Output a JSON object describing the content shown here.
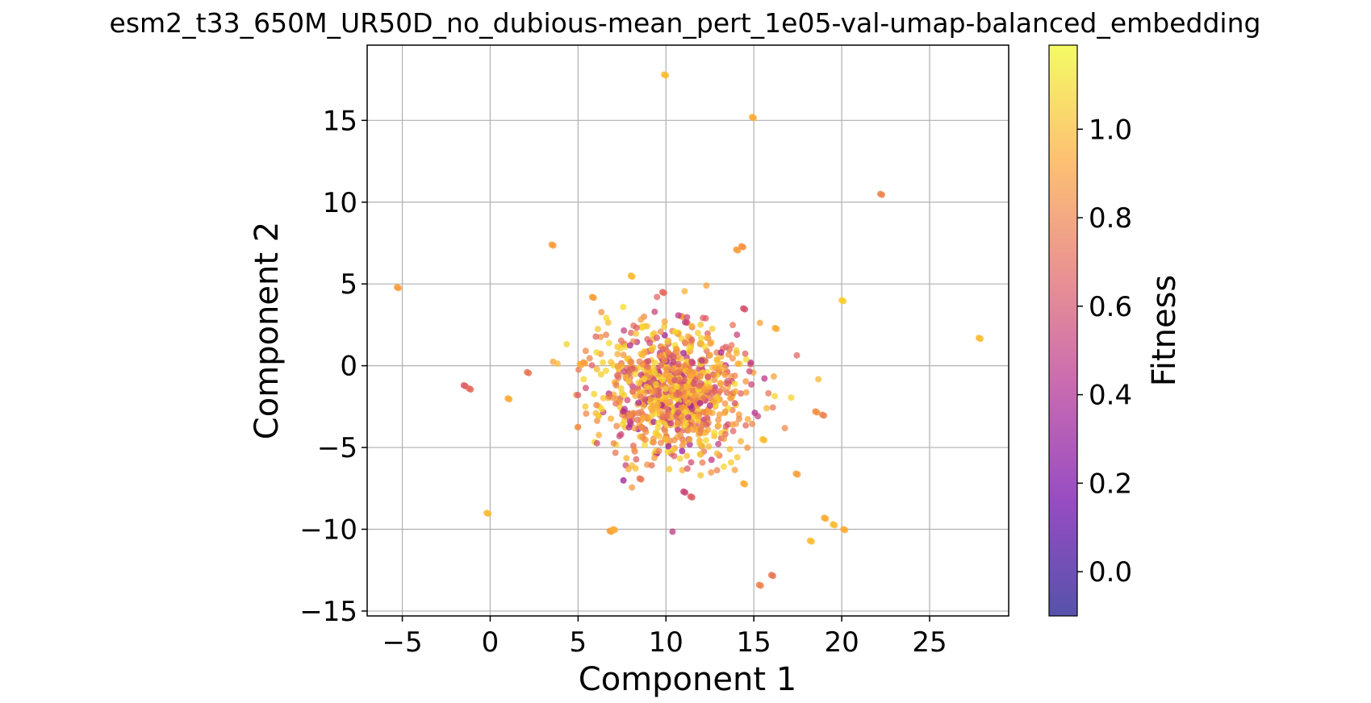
{
  "chart_data": {
    "type": "scatter",
    "title": "esm2_t33_650M_UR50D_no_dubious-mean_pert_1e05-val-umap-balanced_embedding",
    "xlabel": "Component 1",
    "ylabel": "Component 2",
    "xlim": [
      -7,
      29.5
    ],
    "ylim": [
      -15.3,
      19.6
    ],
    "xticks": [
      -5,
      0,
      5,
      10,
      15,
      20,
      25
    ],
    "yticks": [
      -15,
      -10,
      -5,
      0,
      5,
      10,
      15
    ],
    "grid": true,
    "colormap": "plasma",
    "colorbar": {
      "label": "Fitness",
      "range": [
        -0.1,
        1.19
      ],
      "ticks": [
        0.0,
        0.2,
        0.4,
        0.6,
        0.8,
        1.0
      ],
      "colors": [
        "#0d0887",
        "#6a00a8",
        "#b12a90",
        "#e16462",
        "#fca636",
        "#f0f921"
      ]
    },
    "cluster": {
      "center": [
        10.5,
        -1.6
      ],
      "spread": [
        2.1,
        2.0
      ],
      "count": 950,
      "fitness_range": [
        0.3,
        1.1
      ]
    },
    "outliers": [
      {
        "x": -5.3,
        "y": 4.8,
        "c": 0.9
      },
      {
        "x": -1.5,
        "y": -1.2,
        "c": 0.65
      },
      {
        "x": -1.2,
        "y": -1.4,
        "c": 0.7
      },
      {
        "x": 1.0,
        "y": -2.0,
        "c": 0.95
      },
      {
        "x": 2.1,
        "y": -0.4,
        "c": 0.75
      },
      {
        "x": -0.2,
        "y": -9.0,
        "c": 1.0
      },
      {
        "x": 3.5,
        "y": 7.4,
        "c": 0.9
      },
      {
        "x": 9.9,
        "y": 17.8,
        "c": 1.0
      },
      {
        "x": 14.9,
        "y": 15.2,
        "c": 0.95
      },
      {
        "x": 22.2,
        "y": 10.5,
        "c": 0.8
      },
      {
        "x": 14.0,
        "y": 7.1,
        "c": 0.9
      },
      {
        "x": 14.3,
        "y": 7.3,
        "c": 0.85
      },
      {
        "x": 20.0,
        "y": 4.0,
        "c": 1.05
      },
      {
        "x": 27.8,
        "y": 1.7,
        "c": 1.0
      },
      {
        "x": 16.2,
        "y": 2.3,
        "c": 0.95
      },
      {
        "x": 18.5,
        "y": -2.8,
        "c": 0.85
      },
      {
        "x": 18.9,
        "y": -3.0,
        "c": 0.8
      },
      {
        "x": 17.4,
        "y": -6.6,
        "c": 0.9
      },
      {
        "x": 18.2,
        "y": -10.7,
        "c": 1.0
      },
      {
        "x": 19.0,
        "y": -9.3,
        "c": 0.95
      },
      {
        "x": 19.5,
        "y": -9.7,
        "c": 1.0
      },
      {
        "x": 20.1,
        "y": -10.0,
        "c": 0.95
      },
      {
        "x": 16.0,
        "y": -12.8,
        "c": 0.75
      },
      {
        "x": 15.3,
        "y": -13.4,
        "c": 0.8
      },
      {
        "x": 6.8,
        "y": -10.1,
        "c": 0.9
      },
      {
        "x": 7.0,
        "y": -10.0,
        "c": 0.95
      },
      {
        "x": 11.0,
        "y": -7.7,
        "c": 0.55
      },
      {
        "x": 11.4,
        "y": -8.0,
        "c": 0.65
      },
      {
        "x": 8.5,
        "y": -6.9,
        "c": 0.75
      },
      {
        "x": 14.4,
        "y": -7.2,
        "c": 0.95
      },
      {
        "x": 8.0,
        "y": 5.5,
        "c": 1.0
      },
      {
        "x": 5.8,
        "y": 4.2,
        "c": 0.9
      },
      {
        "x": 9.8,
        "y": 4.5,
        "c": 0.7
      },
      {
        "x": 14.4,
        "y": 3.5,
        "c": 0.6
      },
      {
        "x": 15.5,
        "y": -4.5,
        "c": 1.0
      },
      {
        "x": 5.1,
        "y": 0.1,
        "c": 0.95
      },
      {
        "x": 5.3,
        "y": 0.2,
        "c": 0.9
      }
    ]
  }
}
